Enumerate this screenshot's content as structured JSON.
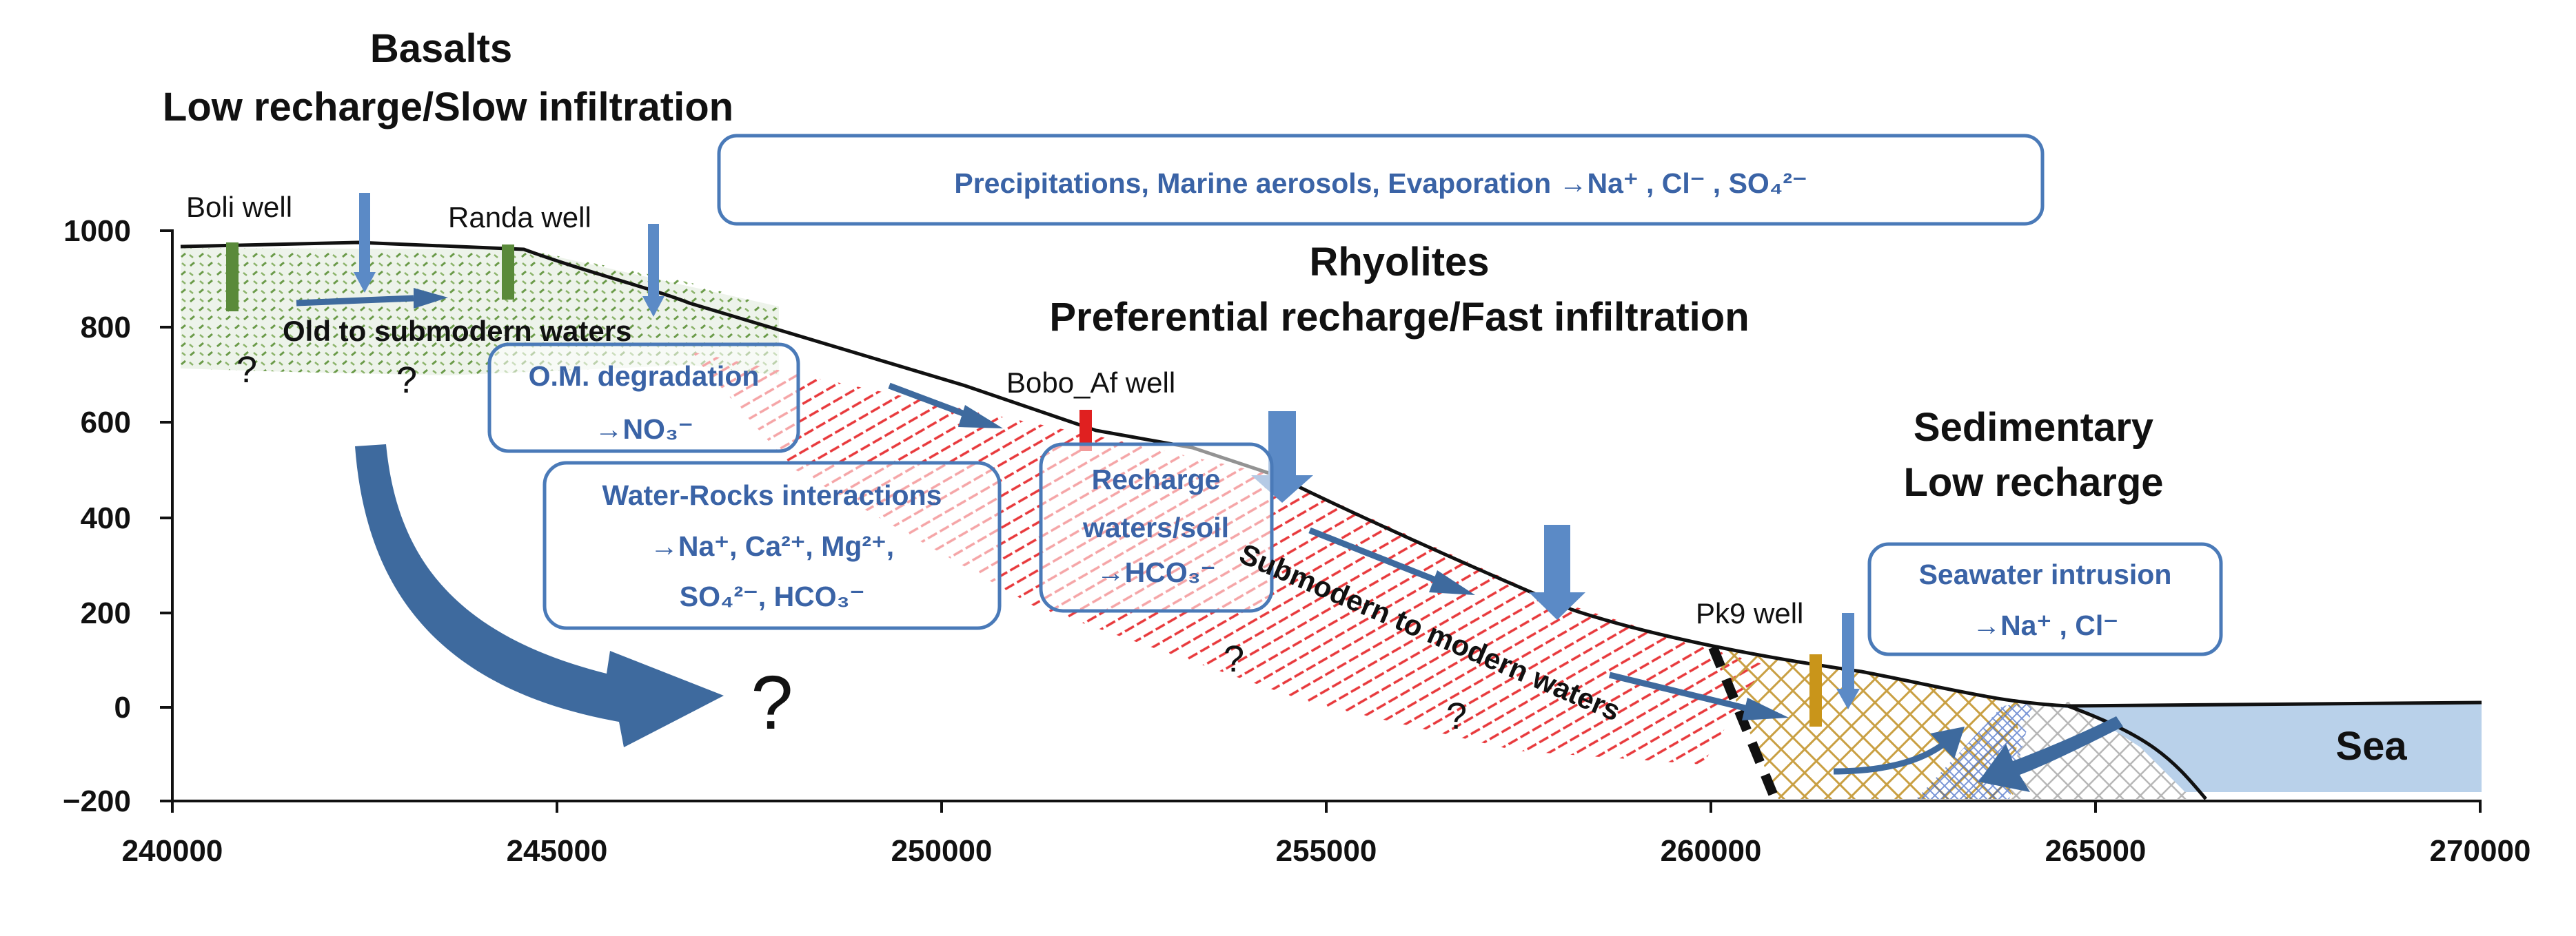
{
  "titles": {
    "basalts_line1": "Basalts",
    "basalts_line2": "Low recharge/Slow infiltration",
    "rhyolites_line1": "Rhyolites",
    "rhyolites_line2": "Preferential recharge/Fast infiltration",
    "sedimentary_line1": "Sedimentary",
    "sedimentary_line2": "Low recharge"
  },
  "axes": {
    "x_ticks": [
      "240000",
      "245000",
      "250000",
      "255000",
      "260000",
      "265000",
      "270000"
    ],
    "y_ticks": [
      "1000",
      "800",
      "600",
      "400",
      "200",
      "0",
      "−200"
    ]
  },
  "wells": {
    "boli": "Boli well",
    "randa": "Randa well",
    "bobo": "Bobo_Af well",
    "pk9": "Pk9 well"
  },
  "boxes": {
    "precipitation": "Precipitations, Marine aerosols, Evaporation →Na⁺ , Cl⁻ , SO₄²⁻",
    "om_line1": "O.M. degradation",
    "om_line2": "→NO₃⁻",
    "wr_line1": "Water-Rocks interactions",
    "wr_line2": "→Na⁺, Ca²⁺, Mg²⁺,",
    "wr_line3": "SO₄²⁻, HCO₃⁻",
    "rech_line1": "Recharge",
    "rech_line2": "waters/soil",
    "rech_line3": "→HCO₃⁻",
    "sw_line1": "Seawater intrusion",
    "sw_line2": "→Na⁺ , Cl⁻"
  },
  "flows": {
    "old": "Old to submodern waters",
    "submodern": "Submodern to modern waters"
  },
  "unknown_marker": "?",
  "sea_label": "Sea",
  "colors": {
    "box_stroke": "#4a7ab8",
    "box_text": "#3a63a6",
    "basalt_hatch": "#6a9a48",
    "rhyolite_hatch": "#e8393c",
    "sediment_hatch": "#c9a043",
    "sea_fill": "#b9d1ea",
    "flow_arrow": "#3e6a9e"
  }
}
